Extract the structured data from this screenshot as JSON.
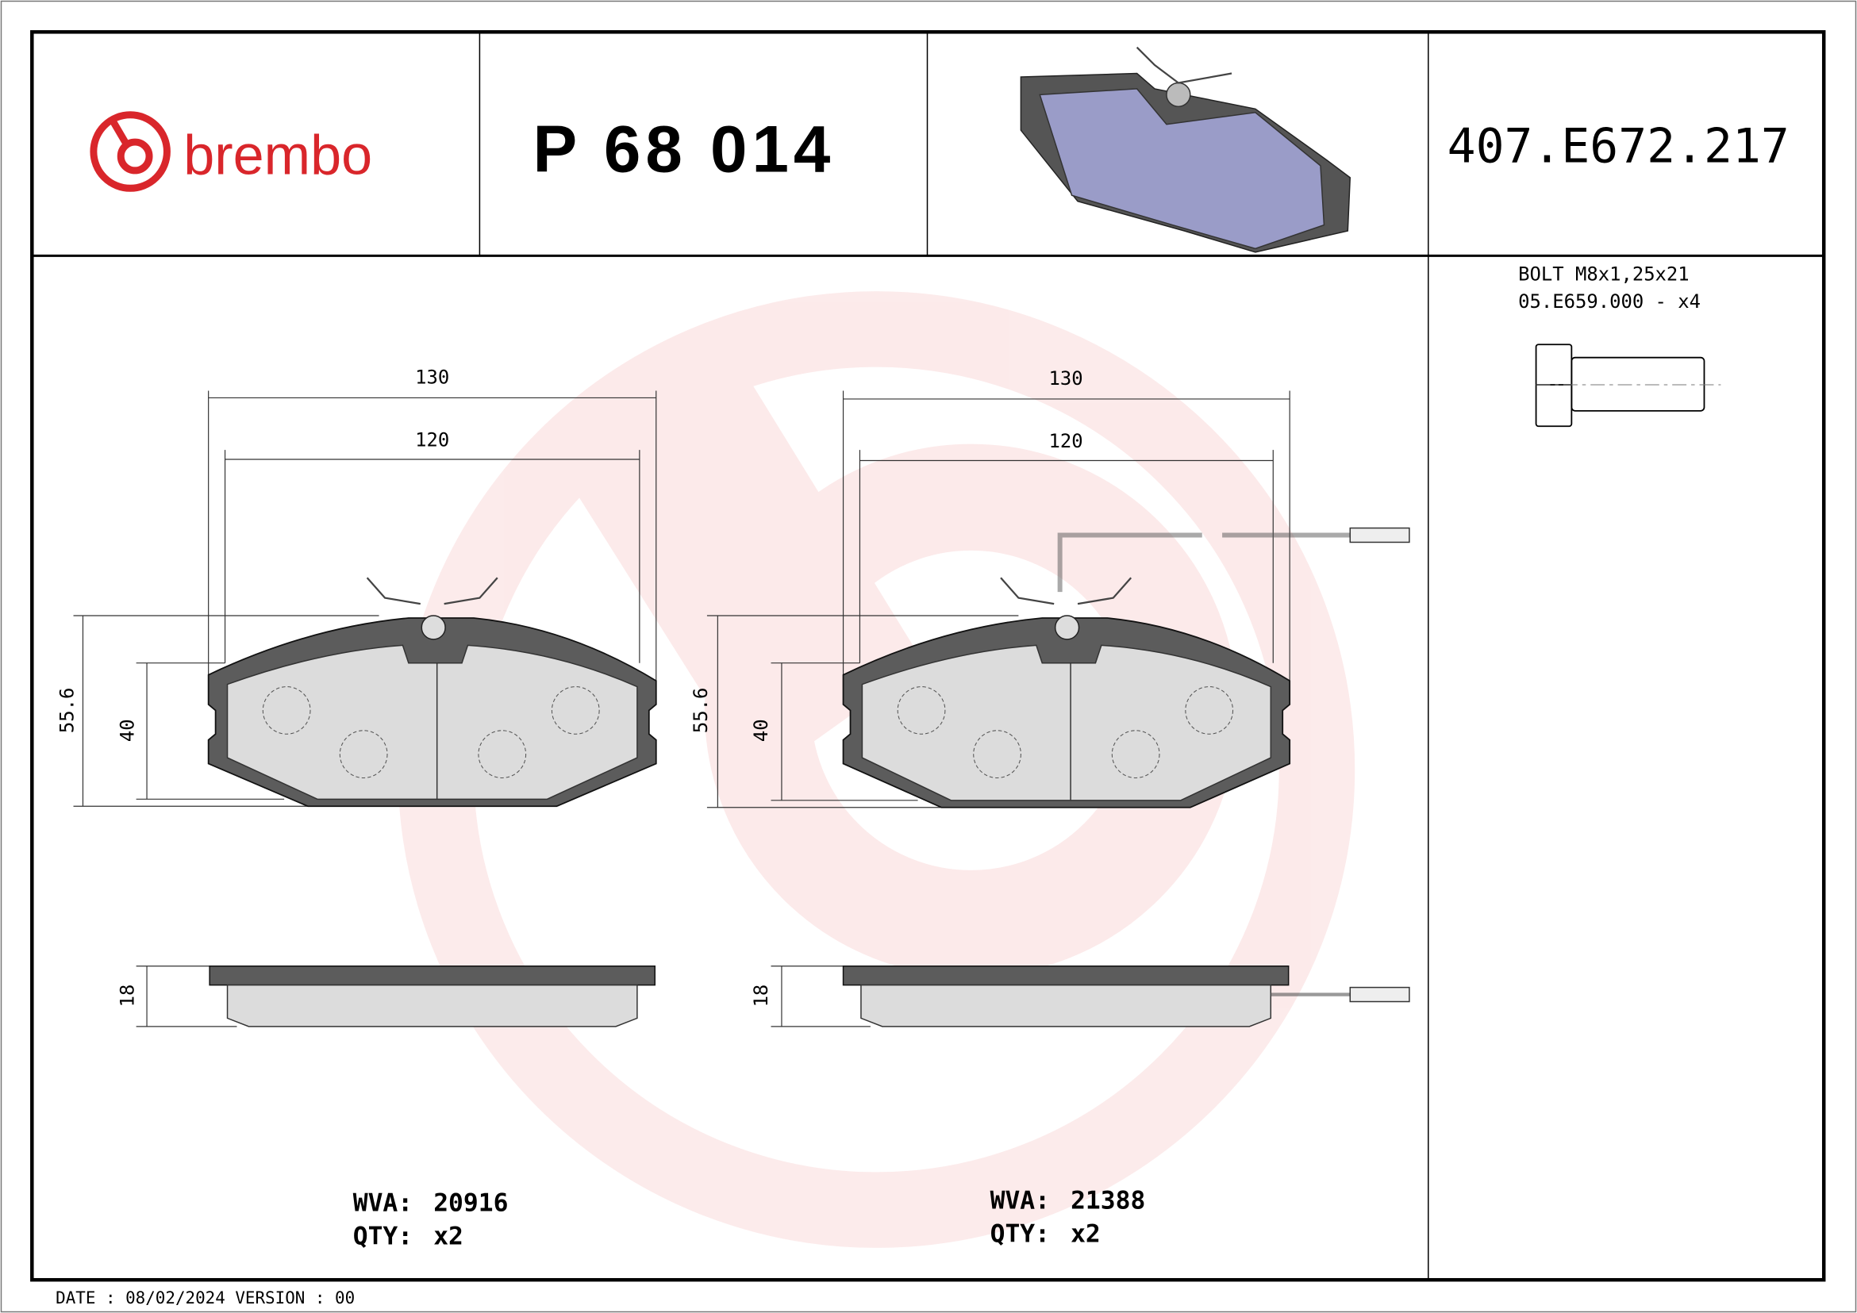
{
  "header": {
    "brand": "brembo",
    "part_number": "P 68 014",
    "reference_code": "407.E672.217"
  },
  "accessory": {
    "line1": "BOLT M8x1,25x21",
    "line2": "05.E659.000 - x4"
  },
  "pads": [
    {
      "width_outer": "130",
      "width_inner": "120",
      "height_outer": "55.6",
      "height_inner": "40",
      "thickness": "18",
      "wva_label": "WVA:",
      "wva": "20916",
      "qty_label": "QTY:",
      "qty": "x2"
    },
    {
      "width_outer": "130",
      "width_inner": "120",
      "height_outer": "55.6",
      "height_inner": "40",
      "thickness": "18",
      "wva_label": "WVA:",
      "wva": "21388",
      "qty_label": "QTY:",
      "qty": "x2"
    }
  ],
  "footer": {
    "text": "DATE : 08/02/2024 VERSION : 00"
  },
  "colors": {
    "brand_red": "#d9262b",
    "watermark": "#fbe4e4",
    "pad_friction": "#dcdcdc",
    "pad_backplate": "#5c5c5c",
    "render_blue": "#9a9cc8"
  }
}
